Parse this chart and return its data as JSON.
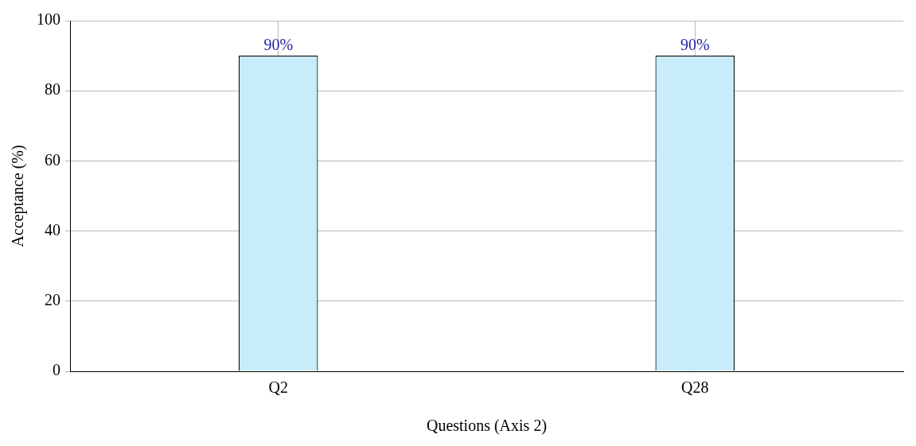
{
  "chart_data": {
    "type": "bar",
    "xlabel": "Questions (Axis 2)",
    "ylabel": "Acceptance (%)",
    "categories": [
      "Q2",
      "Q28"
    ],
    "series": [
      {
        "color": "#c8ecf9",
        "values": [
          90,
          90
        ],
        "value_labels": [
          "90%",
          "90%"
        ]
      }
    ],
    "ylim": [
      0,
      100
    ],
    "yticks": [
      0,
      20,
      40,
      60,
      80,
      100
    ],
    "grid": true,
    "legend": false
  }
}
